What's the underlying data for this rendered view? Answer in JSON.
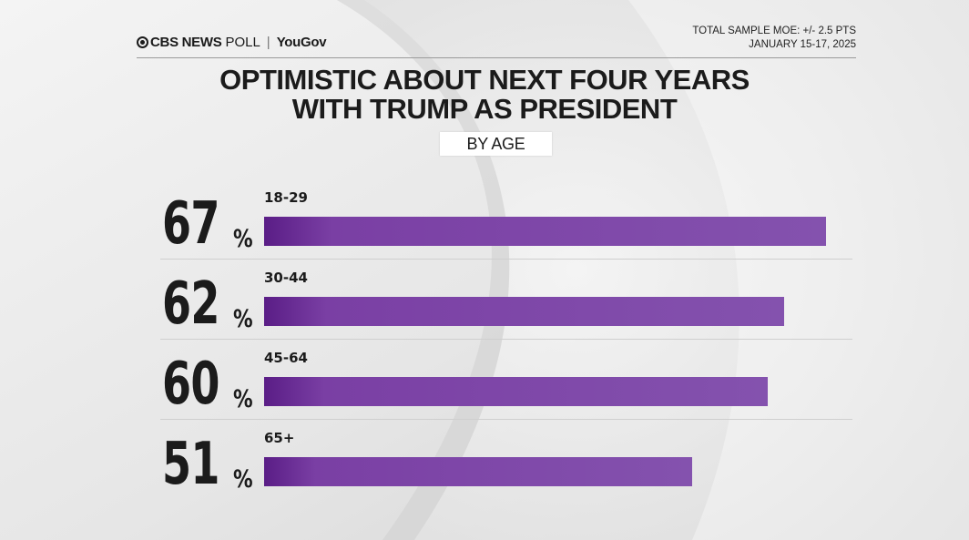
{
  "brand": {
    "network": "CBS NEWS",
    "poll": "POLL",
    "partner": "YouGov"
  },
  "meta": {
    "moe": "TOTAL SAMPLE MOE: +/- 2.5 PTS",
    "dates": "JANUARY 15-17, 2025"
  },
  "chart_data": {
    "type": "bar",
    "orientation": "horizontal",
    "title_lines": [
      "OPTIMISTIC ABOUT NEXT FOUR YEARS",
      "WITH TRUMP AS PRESIDENT"
    ],
    "subtitle": "BY AGE",
    "unit": "%",
    "categories": [
      "18-29",
      "30-44",
      "45-64",
      "65+"
    ],
    "values": [
      67,
      62,
      60,
      51
    ],
    "value_labels": [
      "67",
      "62",
      "60",
      "51"
    ],
    "bar_color": "#7b45a6",
    "xlim": [
      0,
      67
    ]
  }
}
